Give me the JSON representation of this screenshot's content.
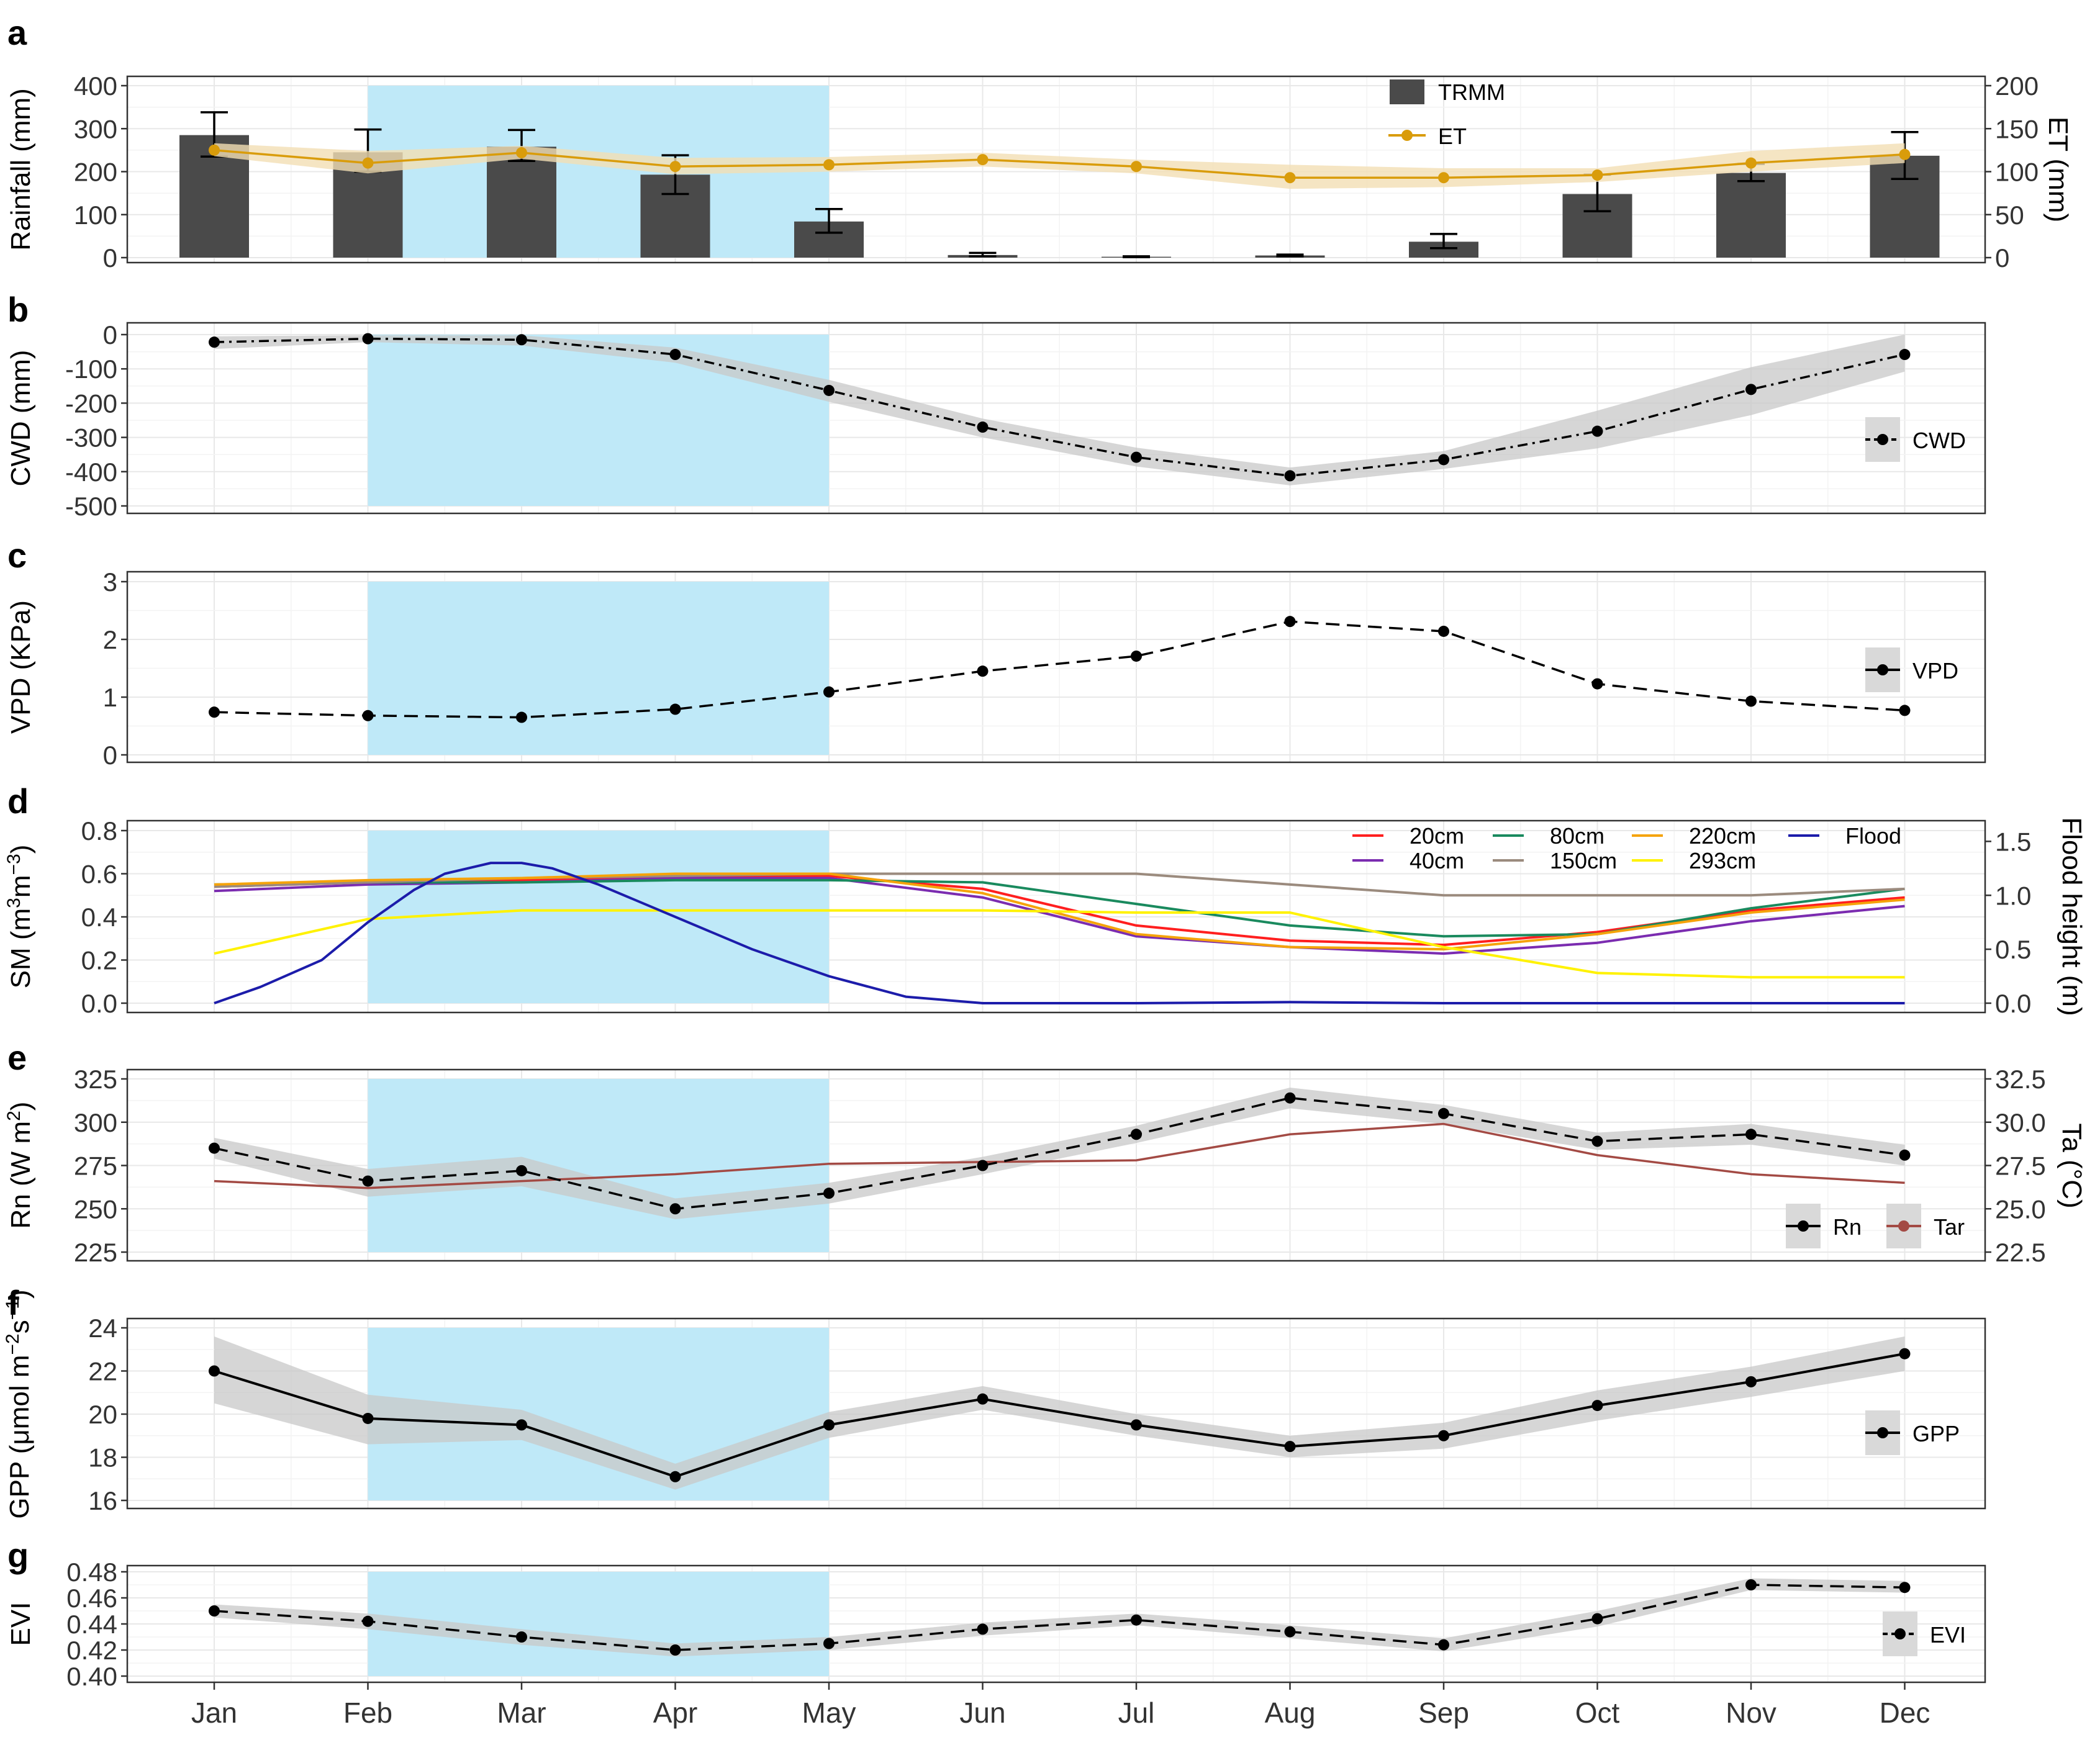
{
  "months": [
    "Jan",
    "Feb",
    "Mar",
    "Apr",
    "May",
    "Jun",
    "Jul",
    "Aug",
    "Sep",
    "Oct",
    "Nov",
    "Dec"
  ],
  "colors": {
    "flood_band": "#bfe9f8",
    "ribbon_gray": "#c8c8c8",
    "et_line": "#d99c0b",
    "et_ribbon": "#f2dfb4",
    "bar": "#4a4a4a",
    "tar": "#a34a44",
    "sm": {
      "20cm": "#ff1f1f",
      "40cm": "#7b2cb0",
      "80cm": "#1a8a5e",
      "150cm": "#9b8b7e",
      "220cm": "#f5a30a",
      "293cm": "#fff200",
      "Flood": "#1c1caa"
    }
  },
  "chart_data": [
    {
      "panel": "a",
      "type": "bar",
      "ylabel": "Rainfall (mm)",
      "ylim": [
        0,
        400
      ],
      "yticks": [
        0,
        100,
        200,
        300,
        400
      ],
      "y2label": "ET (mm)",
      "y2lim": [
        0,
        200
      ],
      "y2ticks": [
        0,
        50,
        100,
        150,
        200
      ],
      "flood_period": [
        "Feb",
        "May"
      ],
      "series": [
        {
          "name": "TRMM",
          "type": "bar",
          "axis": "left",
          "values": [
            285,
            245,
            258,
            193,
            84,
            6,
            2,
            5,
            37,
            148,
            197,
            237
          ],
          "err_low": [
            235,
            200,
            225,
            148,
            58,
            3,
            1,
            3,
            22,
            108,
            178,
            183
          ],
          "err_high": [
            338,
            298,
            297,
            238,
            113,
            11,
            3,
            7,
            55,
            193,
            218,
            292
          ]
        },
        {
          "name": "ET",
          "type": "line",
          "axis": "right",
          "values": [
            125,
            110,
            122,
            106,
            108,
            114,
            106,
            93,
            93,
            96,
            110,
            120
          ],
          "band_low": [
            118,
            98,
            115,
            97,
            100,
            106,
            98,
            80,
            82,
            88,
            100,
            110
          ],
          "band_high": [
            133,
            124,
            130,
            116,
            117,
            122,
            114,
            108,
            104,
            104,
            124,
            133
          ]
        }
      ],
      "legend": [
        "TRMM",
        "ET"
      ]
    },
    {
      "panel": "b",
      "type": "line",
      "ylabel": "CWD (mm)",
      "ylim": [
        -500,
        0
      ],
      "yticks": [
        0,
        -100,
        -200,
        -300,
        -400,
        -500
      ],
      "series": [
        {
          "name": "CWD",
          "values": [
            -22,
            -12,
            -15,
            -58,
            -163,
            -270,
            -358,
            -412,
            -365,
            -282,
            -160,
            -58
          ],
          "band_low": [
            -42,
            -22,
            -32,
            -82,
            -196,
            -300,
            -385,
            -440,
            -392,
            -332,
            -235,
            -108
          ],
          "band_high": [
            -5,
            -2,
            -2,
            -38,
            -132,
            -245,
            -330,
            -388,
            -340,
            -222,
            -95,
            0
          ]
        }
      ],
      "legend": [
        "CWD"
      ]
    },
    {
      "panel": "c",
      "type": "line",
      "ylabel": "VPD (KPa)",
      "ylim": [
        0,
        3
      ],
      "yticks": [
        0,
        1,
        2,
        3
      ],
      "series": [
        {
          "name": "VPD",
          "values": [
            0.74,
            0.68,
            0.65,
            0.79,
            1.09,
            1.45,
            1.71,
            2.31,
            2.14,
            1.23,
            0.93,
            0.77
          ]
        }
      ],
      "legend": [
        "VPD"
      ]
    },
    {
      "panel": "d",
      "type": "line",
      "ylabel_main": "SM (",
      "ylabel_unit": "m",
      "ylabel_sup1": "3",
      "ylabel_unit2": "m",
      "ylabel_sup2": "−3",
      "ylabel_end": ")",
      "ylim": [
        0,
        0.8
      ],
      "yticks": [
        "0.0",
        "0.2",
        "0.4",
        "0.6",
        "0.8"
      ],
      "y2label": "Flood height (m)",
      "y2lim": [
        0,
        1.6
      ],
      "y2ticks": [
        "0.0",
        "0.5",
        "1.0",
        "1.5"
      ],
      "series": [
        {
          "name": "20cm",
          "values": [
            0.54,
            0.56,
            0.57,
            0.59,
            0.59,
            0.53,
            0.36,
            0.29,
            0.27,
            0.33,
            0.43,
            0.49
          ]
        },
        {
          "name": "40cm",
          "values": [
            0.52,
            0.55,
            0.56,
            0.58,
            0.58,
            0.49,
            0.31,
            0.26,
            0.23,
            0.28,
            0.38,
            0.45
          ]
        },
        {
          "name": "80cm",
          "values": [
            0.55,
            0.56,
            0.56,
            0.57,
            0.57,
            0.56,
            0.46,
            0.36,
            0.31,
            0.32,
            0.44,
            0.53
          ]
        },
        {
          "name": "150cm",
          "values": [
            0.54,
            0.56,
            0.58,
            0.59,
            0.6,
            0.6,
            0.6,
            0.55,
            0.5,
            0.5,
            0.5,
            0.53
          ]
        },
        {
          "name": "220cm",
          "values": [
            0.55,
            0.57,
            0.58,
            0.6,
            0.6,
            0.51,
            0.32,
            0.26,
            0.25,
            0.32,
            0.42,
            0.48
          ]
        },
        {
          "name": "293cm",
          "values": [
            0.23,
            0.39,
            0.43,
            0.43,
            0.43,
            0.43,
            0.42,
            0.42,
            0.26,
            0.14,
            0.12,
            0.12
          ]
        },
        {
          "name": "Flood",
          "axis": "right",
          "x": [
            1,
            1.3,
            1.7,
            2.0,
            2.3,
            2.5,
            2.8,
            3.0,
            3.2,
            3.5,
            4.0,
            4.5,
            5.0,
            5.5,
            6.0,
            7,
            8,
            9,
            10,
            11,
            12
          ],
          "values": [
            0,
            0.15,
            0.4,
            0.75,
            1.05,
            1.2,
            1.3,
            1.3,
            1.25,
            1.1,
            0.8,
            0.5,
            0.25,
            0.06,
            0,
            0,
            0.01,
            0,
            0,
            0,
            0
          ]
        }
      ],
      "legend": [
        "20cm",
        "80cm",
        "220cm",
        "Flood",
        "40cm",
        "150cm",
        "293cm"
      ]
    },
    {
      "panel": "e",
      "type": "line",
      "ylabel_main": "Rn (W m",
      "ylabel_sup": "2",
      "ylabel_end": ")",
      "ylim": [
        225,
        325
      ],
      "yticks": [
        225,
        250,
        275,
        300,
        325
      ],
      "y2label": "Ta (°C)",
      "y2ticks": [
        "22.5",
        "25.0",
        "27.5",
        "30.0",
        "32.5"
      ],
      "series": [
        {
          "name": "Rn",
          "values": [
            285,
            266,
            272,
            250,
            259,
            275,
            293,
            314,
            305,
            289,
            293,
            281
          ],
          "band_low": [
            279,
            257,
            263,
            244,
            253,
            270,
            288,
            308,
            299,
            284,
            287,
            275
          ],
          "band_high": [
            291,
            273,
            280,
            256,
            265,
            280,
            298,
            320,
            310,
            294,
            299,
            287
          ]
        },
        {
          "name": "Tar",
          "axis": "right",
          "values": [
            26.6,
            26.2,
            26.6,
            27.0,
            27.6,
            27.7,
            27.8,
            29.3,
            29.9,
            28.1,
            27.0,
            26.5
          ]
        }
      ],
      "legend": [
        "Rn",
        "Tar"
      ]
    },
    {
      "panel": "f",
      "type": "line",
      "ylabel_main": "GPP (μmol m",
      "ylabel_sup1": "−2",
      "ylabel_mid": "s",
      "ylabel_sup2": "−1",
      "ylabel_end": ")",
      "ylim": [
        16,
        24
      ],
      "yticks": [
        16,
        18,
        20,
        22,
        24
      ],
      "series": [
        {
          "name": "GPP",
          "values": [
            22.0,
            19.8,
            19.5,
            17.1,
            19.5,
            20.7,
            19.5,
            18.5,
            19.0,
            20.4,
            21.5,
            22.8
          ],
          "band_low": [
            20.5,
            18.6,
            18.8,
            16.5,
            18.9,
            20.2,
            19.0,
            18.0,
            18.4,
            19.7,
            20.8,
            22.0
          ],
          "band_high": [
            23.6,
            20.9,
            20.2,
            17.7,
            20.1,
            21.3,
            20.0,
            19.0,
            19.6,
            21.1,
            22.2,
            23.6
          ]
        }
      ],
      "legend": [
        "GPP"
      ]
    },
    {
      "panel": "g",
      "type": "line",
      "ylabel": "EVI",
      "ylim": [
        0.4,
        0.48
      ],
      "yticks": [
        "0.40",
        "0.42",
        "0.44",
        "0.46",
        "0.48"
      ],
      "series": [
        {
          "name": "EVI",
          "values": [
            0.45,
            0.442,
            0.43,
            0.42,
            0.425,
            0.436,
            0.443,
            0.434,
            0.424,
            0.444,
            0.47,
            0.468
          ],
          "band_low": [
            0.445,
            0.436,
            0.424,
            0.415,
            0.42,
            0.431,
            0.439,
            0.429,
            0.419,
            0.438,
            0.466,
            0.464
          ],
          "band_high": [
            0.455,
            0.448,
            0.436,
            0.425,
            0.43,
            0.441,
            0.448,
            0.439,
            0.429,
            0.45,
            0.475,
            0.473
          ]
        }
      ],
      "legend": [
        "EVI"
      ]
    }
  ]
}
